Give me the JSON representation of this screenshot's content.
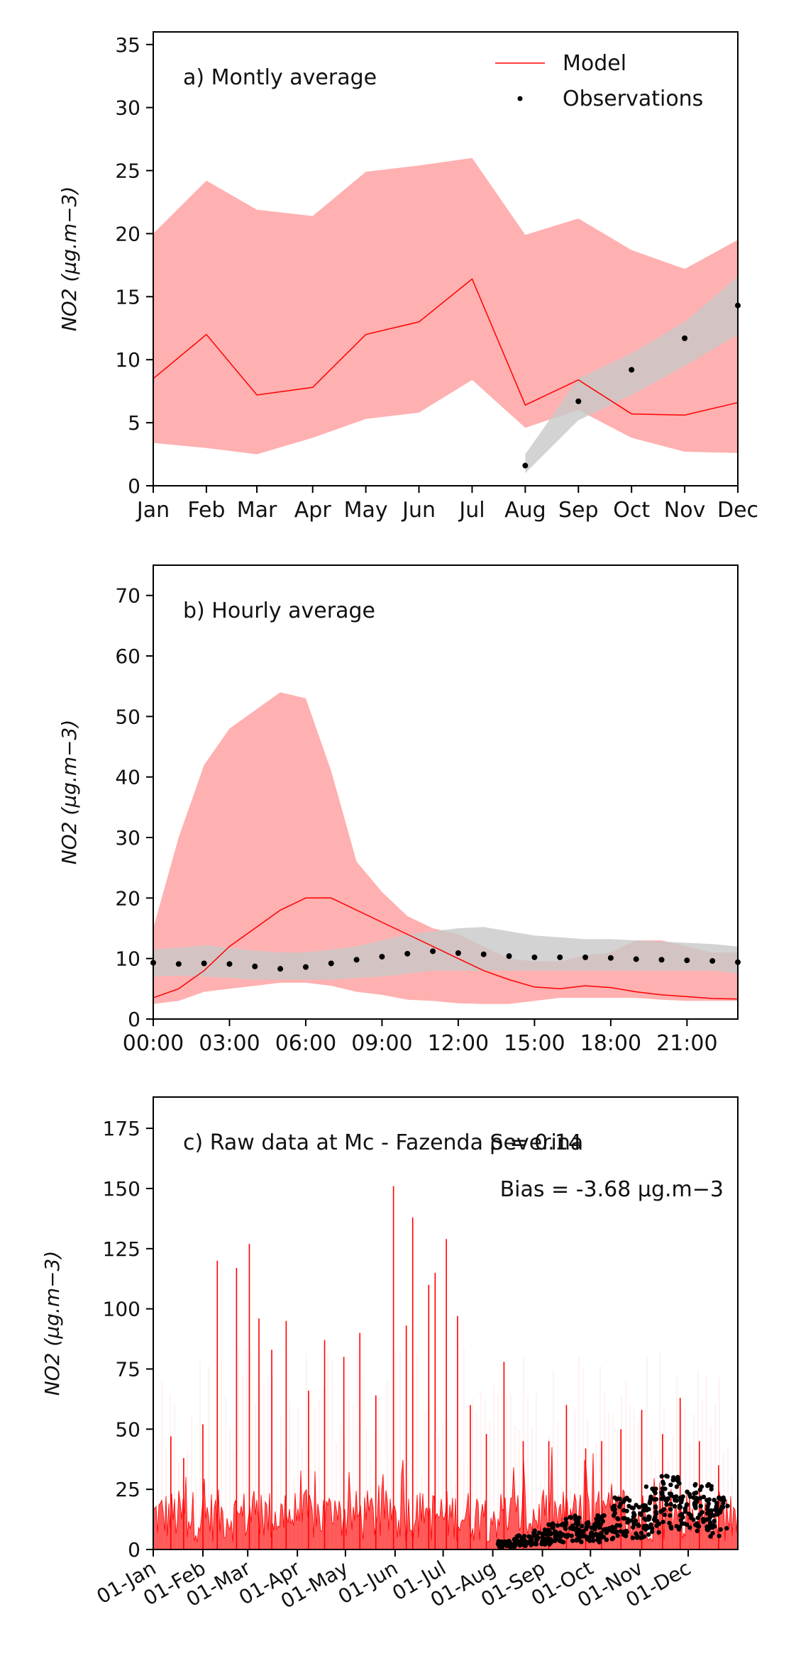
{
  "colors": {
    "model": "#ff0000",
    "model_band": "#ffb0b0",
    "obs_band": "#c8c8c8",
    "observations": "#000000"
  },
  "chart_data": [
    {
      "type": "line",
      "title": "a) Montly average",
      "xlabel": "",
      "ylabel": "NO2 (µg.m−3)",
      "ylim": [
        0,
        36
      ],
      "legend": {
        "placement": "top-right",
        "entries": [
          "Model",
          "Observations"
        ]
      },
      "x_ticks": [
        "Jan",
        "Feb",
        "Mar",
        "Apr",
        "May",
        "Jun",
        "Jul",
        "Aug",
        "Sep",
        "Oct",
        "Nov",
        "Dec"
      ],
      "y_ticks": [
        0,
        5,
        10,
        15,
        20,
        25,
        30,
        35
      ],
      "x": [
        1,
        2,
        2.95,
        4,
        5,
        6,
        7,
        8,
        9,
        10,
        11,
        12
      ],
      "series": [
        {
          "name": "Model",
          "values": [
            8.5,
            12.0,
            7.2,
            7.8,
            12.0,
            13.0,
            16.4,
            6.4,
            8.4,
            5.7,
            5.6,
            6.6
          ]
        },
        {
          "name": "Observations",
          "x": [
            8,
            9,
            10,
            11,
            12
          ],
          "values": [
            1.6,
            6.7,
            9.2,
            11.7,
            14.3
          ]
        }
      ],
      "model_range": {
        "lower": [
          3.4,
          3.0,
          2.5,
          3.8,
          5.3,
          5.8,
          8.4,
          4.6,
          6.0,
          3.8,
          2.7,
          2.6
        ],
        "upper": [
          20.0,
          24.2,
          21.9,
          21.4,
          24.9,
          25.4,
          26.0,
          19.9,
          21.2,
          18.7,
          17.2,
          19.5
        ]
      },
      "obs_range": {
        "x": [
          8,
          9,
          10,
          11,
          12
        ],
        "lower": [
          1.0,
          5.2,
          7.2,
          9.5,
          12.0
        ],
        "upper": [
          2.5,
          8.5,
          10.5,
          13.0,
          16.6
        ]
      }
    },
    {
      "type": "line",
      "title": "b) Hourly average",
      "xlabel": "",
      "ylabel": "NO2 (µg.m−3)",
      "ylim": [
        0,
        75
      ],
      "x_ticks": [
        "00:00",
        "03:00",
        "06:00",
        "09:00",
        "12:00",
        "15:00",
        "18:00",
        "21:00"
      ],
      "y_ticks": [
        0,
        10,
        20,
        30,
        40,
        50,
        60,
        70
      ],
      "x": [
        0,
        1,
        2,
        3,
        4,
        5,
        6,
        7,
        8,
        9,
        10,
        11,
        12,
        13,
        14,
        15,
        16,
        17,
        18,
        19,
        20,
        21,
        22,
        23
      ],
      "series": [
        {
          "name": "Model",
          "values": [
            3.5,
            5,
            8,
            12,
            15,
            18,
            20,
            20,
            18,
            16,
            14,
            12,
            10,
            8,
            6.5,
            5.3,
            5.0,
            5.5,
            5.2,
            4.5,
            4.0,
            3.7,
            3.4,
            3.3
          ]
        },
        {
          "name": "Observations",
          "values": [
            9.3,
            9.1,
            9.2,
            9.1,
            8.7,
            8.3,
            8.6,
            9.2,
            9.8,
            10.3,
            10.8,
            11.2,
            10.9,
            10.7,
            10.4,
            10.2,
            10.2,
            10.2,
            10.1,
            9.9,
            9.8,
            9.7,
            9.6,
            9.4
          ]
        }
      ],
      "model_range": {
        "lower": [
          2.5,
          3,
          4.5,
          5,
          5.5,
          6,
          6,
          5.5,
          4.5,
          4,
          3.2,
          3,
          2.6,
          2.5,
          2.5,
          3,
          3.5,
          3.5,
          3.5,
          3.5,
          3.2,
          3,
          3,
          3
        ],
        "upper": [
          15,
          30,
          42,
          48,
          51,
          54,
          53,
          41,
          26,
          21,
          17,
          15,
          14,
          12,
          10,
          9.5,
          9.5,
          10.5,
          11,
          13,
          13,
          12,
          11,
          11
        ]
      },
      "obs_range": {
        "lower": [
          7,
          7.2,
          7,
          6.8,
          6.5,
          6.5,
          6.5,
          6.5,
          6.8,
          7,
          7.5,
          8,
          8,
          8,
          8,
          8,
          8,
          8,
          8,
          8,
          8,
          8,
          8,
          7.5
        ],
        "upper": [
          11.5,
          11.8,
          12.2,
          11.8,
          11.3,
          11,
          11,
          11.5,
          12,
          13,
          14,
          14.5,
          15,
          15.2,
          14.5,
          13.8,
          13.5,
          13.2,
          13.2,
          13,
          12.8,
          12.6,
          12.4,
          12
        ]
      }
    },
    {
      "type": "line",
      "title": "c) Raw data at Mc - Fazenda Severina",
      "xlabel": "",
      "ylabel": "NO2 (µg.m−3)",
      "ylim": [
        0,
        188
      ],
      "annotations": [
        "ρ = 0.14",
        "Bias = -3.68 µg.m−3"
      ],
      "x_ticks": [
        "01-Jan",
        "01-Feb",
        "01-Mar",
        "01-Apr",
        "01-May",
        "01-Jun",
        "01-Jul",
        "01-Aug",
        "01-Sep",
        "01-Oct",
        "01-Nov",
        "01-Dec"
      ],
      "y_ticks": [
        0,
        25,
        50,
        75,
        100,
        125,
        150,
        175
      ],
      "model_spikes": [
        {
          "date": "2019-01-12",
          "value": 47
        },
        {
          "date": "2019-01-20",
          "value": 38
        },
        {
          "date": "2019-02-01",
          "value": 52
        },
        {
          "date": "2019-02-10",
          "value": 120
        },
        {
          "date": "2019-02-22",
          "value": 117
        },
        {
          "date": "2019-03-02",
          "value": 127
        },
        {
          "date": "2019-03-08",
          "value": 96
        },
        {
          "date": "2019-03-16",
          "value": 83
        },
        {
          "date": "2019-03-25",
          "value": 95
        },
        {
          "date": "2019-04-08",
          "value": 66
        },
        {
          "date": "2019-04-18",
          "value": 87
        },
        {
          "date": "2019-04-30",
          "value": 80
        },
        {
          "date": "2019-05-10",
          "value": 90
        },
        {
          "date": "2019-05-20",
          "value": 64
        },
        {
          "date": "2019-05-31",
          "value": 151
        },
        {
          "date": "2019-06-08",
          "value": 93
        },
        {
          "date": "2019-06-12",
          "value": 138
        },
        {
          "date": "2019-06-22",
          "value": 110
        },
        {
          "date": "2019-06-26",
          "value": 115
        },
        {
          "date": "2019-07-03",
          "value": 129
        },
        {
          "date": "2019-07-10",
          "value": 97
        },
        {
          "date": "2019-07-18",
          "value": 60
        },
        {
          "date": "2019-07-28",
          "value": 48
        },
        {
          "date": "2019-08-08",
          "value": 78
        },
        {
          "date": "2019-08-20",
          "value": 45
        },
        {
          "date": "2019-09-05",
          "value": 45
        },
        {
          "date": "2019-09-16",
          "value": 60
        },
        {
          "date": "2019-09-28",
          "value": 42
        },
        {
          "date": "2019-10-08",
          "value": 45
        },
        {
          "date": "2019-10-20",
          "value": 50
        },
        {
          "date": "2019-11-02",
          "value": 58
        },
        {
          "date": "2019-11-15",
          "value": 48
        },
        {
          "date": "2019-11-26",
          "value": 63
        },
        {
          "date": "2019-12-08",
          "value": 45
        },
        {
          "date": "2019-12-20",
          "value": 35
        }
      ],
      "observation_clusters": [
        {
          "date": "2019-08-10",
          "value": 3
        },
        {
          "date": "2019-08-20",
          "value": 5
        },
        {
          "date": "2019-09-01",
          "value": 7
        },
        {
          "date": "2019-09-10",
          "value": 9
        },
        {
          "date": "2019-09-20",
          "value": 12
        },
        {
          "date": "2019-10-01",
          "value": 10
        },
        {
          "date": "2019-10-10",
          "value": 13
        },
        {
          "date": "2019-10-20",
          "value": 18
        },
        {
          "date": "2019-11-01",
          "value": 16
        },
        {
          "date": "2019-11-10",
          "value": 22
        },
        {
          "date": "2019-11-20",
          "value": 28
        },
        {
          "date": "2019-12-01",
          "value": 20
        },
        {
          "date": "2019-12-10",
          "value": 25
        },
        {
          "date": "2019-12-20",
          "value": 18
        }
      ]
    }
  ]
}
